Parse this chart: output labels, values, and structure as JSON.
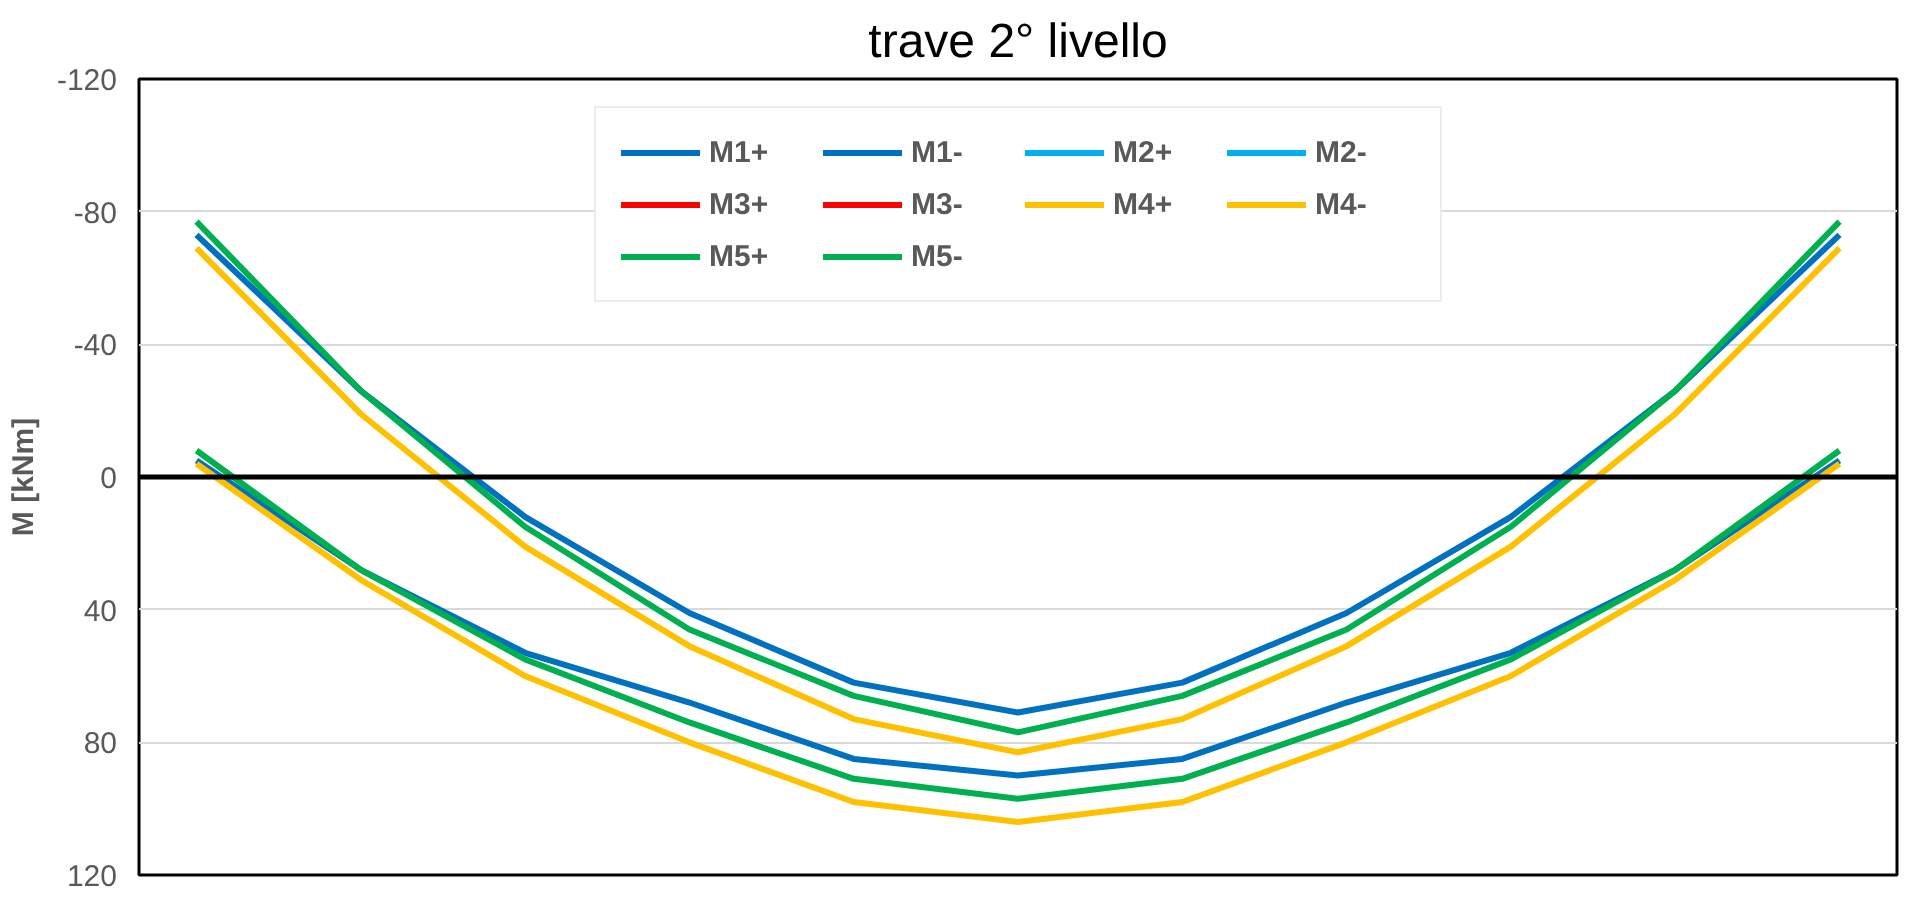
{
  "chart_data": {
    "type": "line",
    "title": "trave 2° livello",
    "ylabel": "M [kNm]",
    "categories": [
      null,
      null,
      null,
      null,
      null,
      null,
      null,
      null,
      null,
      null,
      null
    ],
    "ylim": [
      120,
      -120
    ],
    "yticks": [
      -120,
      -80,
      -40,
      0,
      40,
      80,
      120
    ],
    "grid": "y",
    "legend": "top",
    "line_style": "solid",
    "marker": "none",
    "ref_lines": [
      {
        "axis": "y",
        "value": 0,
        "label": null,
        "color": "#000000"
      }
    ],
    "series": [
      {
        "name": "M1+",
        "color": "#0070c0",
        "values": [
          -5,
          28,
          53,
          68,
          85,
          90,
          85,
          68,
          53,
          28,
          -5
        ]
      },
      {
        "name": "M1-",
        "color": "#0070c0",
        "values": [
          -73,
          -26,
          12,
          41,
          62,
          71,
          62,
          41,
          12,
          -26,
          -73
        ]
      },
      {
        "name": "M2+",
        "color": "#00b0f0",
        "values": [
          null,
          null,
          null,
          null,
          null,
          null,
          null,
          null,
          null,
          null,
          null
        ]
      },
      {
        "name": "M2-",
        "color": "#00b0f0",
        "values": [
          null,
          null,
          null,
          null,
          null,
          null,
          null,
          null,
          null,
          null,
          null
        ]
      },
      {
        "name": "M3+",
        "color": "#ff0000",
        "values": [
          null,
          null,
          null,
          null,
          null,
          null,
          null,
          null,
          null,
          null,
          null
        ]
      },
      {
        "name": "M3-",
        "color": "#ff0000",
        "values": [
          null,
          null,
          null,
          null,
          null,
          null,
          null,
          null,
          null,
          null,
          null
        ]
      },
      {
        "name": "M4+",
        "color": "#ffc000",
        "values": [
          -4,
          31,
          60,
          80,
          98,
          104,
          98,
          80,
          60,
          31,
          -4
        ]
      },
      {
        "name": "M4-",
        "color": "#ffc000",
        "values": [
          -69,
          -19,
          21,
          51,
          73,
          83,
          73,
          51,
          21,
          -19,
          -69
        ]
      },
      {
        "name": "M5+",
        "color": "#00b050",
        "values": [
          -8,
          28,
          55,
          74,
          91,
          97,
          91,
          74,
          55,
          28,
          -8
        ]
      },
      {
        "name": "M5-",
        "color": "#00b050",
        "values": [
          -77,
          -26,
          15,
          46,
          66,
          77,
          66,
          46,
          15,
          -26,
          -77
        ]
      }
    ]
  }
}
